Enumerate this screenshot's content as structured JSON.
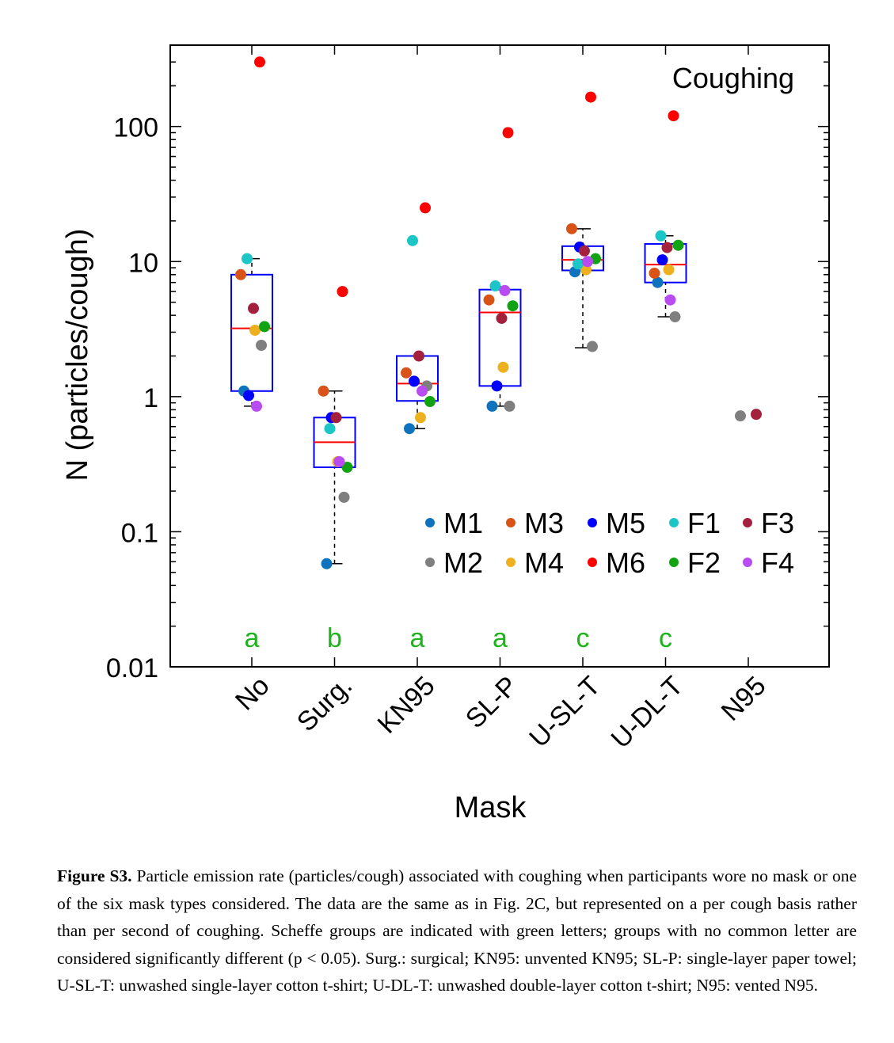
{
  "chart_data": {
    "type": "box-scatter",
    "annotation": "Coughing",
    "xlabel": "Mask",
    "ylabel": "N (particles/cough)",
    "y_scale": "log",
    "ylim": [
      0.01,
      400
    ],
    "y_ticks": [
      "0.01",
      "0.1",
      "1",
      "10",
      "100"
    ],
    "y_tick_values": [
      0.01,
      0.1,
      1,
      10,
      100
    ],
    "categories": [
      "No",
      "Surg.",
      "KN95",
      "SL-P",
      "U-SL-T",
      "U-DL-T",
      "N95"
    ],
    "scheffe_groups": [
      "a",
      "b",
      "a",
      "a",
      "c",
      "c",
      ""
    ],
    "group_letter_color": "#1db31d",
    "box_color": "#0000ff",
    "median_color": "#ff0000",
    "boxes": [
      {
        "category": "No",
        "q1": 1.1,
        "median": 3.2,
        "q3": 8.0,
        "whisker_low": 0.85,
        "whisker_high": 10.5
      },
      {
        "category": "Surg.",
        "q1": 0.3,
        "median": 0.46,
        "q3": 0.7,
        "whisker_low": 0.058,
        "whisker_high": 1.1
      },
      {
        "category": "KN95",
        "q1": 0.93,
        "median": 1.25,
        "q3": 2.0,
        "whisker_low": 0.58,
        "whisker_high": 2.0
      },
      {
        "category": "SL-P",
        "q1": 1.2,
        "median": 4.2,
        "q3": 6.2,
        "whisker_low": 0.85,
        "whisker_high": 6.5
      },
      {
        "category": "U-SL-T",
        "q1": 8.6,
        "median": 10.3,
        "q3": 13.0,
        "whisker_low": 2.3,
        "whisker_high": 17.5
      },
      {
        "category": "U-DL-T",
        "q1": 7.0,
        "median": 9.5,
        "q3": 13.5,
        "whisker_low": 3.9,
        "whisker_high": 15.5
      }
    ],
    "series": [
      {
        "name": "M1",
        "color": "#0f72bd",
        "values": [
          1.1,
          0.058,
          0.58,
          0.85,
          8.4,
          7.0,
          null
        ]
      },
      {
        "name": "M2",
        "color": "#7f7f7f",
        "values": [
          2.4,
          0.18,
          1.2,
          0.85,
          2.35,
          3.9,
          0.72
        ]
      },
      {
        "name": "M3",
        "color": "#d95319",
        "values": [
          8.0,
          1.1,
          1.5,
          5.2,
          17.5,
          8.2,
          null
        ]
      },
      {
        "name": "M4",
        "color": "#edb120",
        "values": [
          3.1,
          0.33,
          0.7,
          1.65,
          8.7,
          8.7,
          null
        ]
      },
      {
        "name": "M5",
        "color": "#0000ff",
        "values": [
          1.02,
          0.7,
          1.3,
          1.2,
          12.8,
          10.3,
          null
        ]
      },
      {
        "name": "M6",
        "color": "#ff0000",
        "values": [
          300,
          6.0,
          25,
          90,
          165,
          120,
          null
        ]
      },
      {
        "name": "F1",
        "color": "#1cc6c6",
        "values": [
          10.5,
          0.58,
          14.3,
          6.6,
          9.6,
          15.5,
          null
        ]
      },
      {
        "name": "F2",
        "color": "#12a312",
        "values": [
          3.3,
          0.3,
          0.92,
          4.7,
          10.5,
          13.2,
          null
        ]
      },
      {
        "name": "F3",
        "color": "#a3213c",
        "values": [
          4.5,
          0.7,
          2.0,
          3.8,
          12.0,
          12.7,
          0.74
        ]
      },
      {
        "name": "F4",
        "color": "#b84cf0",
        "values": [
          0.85,
          0.33,
          1.1,
          6.1,
          10.0,
          5.2,
          null
        ]
      }
    ],
    "legend_position": "lower-right"
  },
  "caption": {
    "label": "Figure S3.",
    "text": " Particle emission rate (particles/cough) associated with coughing when participants wore no mask or one of the six mask types considered. The data are the same as in Fig. 2C, but represented on a per cough basis rather than per second of coughing. Scheffe groups are indicated with green letters; groups with no common letter are considered significantly different (p < 0.05). Surg.: surgical; KN95: unvented KN95; SL-P: single-layer paper towel; U-SL-T: unwashed single-layer cotton t-shirt; U-DL-T: unwashed double-layer cotton t-shirt; N95: vented N95."
  }
}
